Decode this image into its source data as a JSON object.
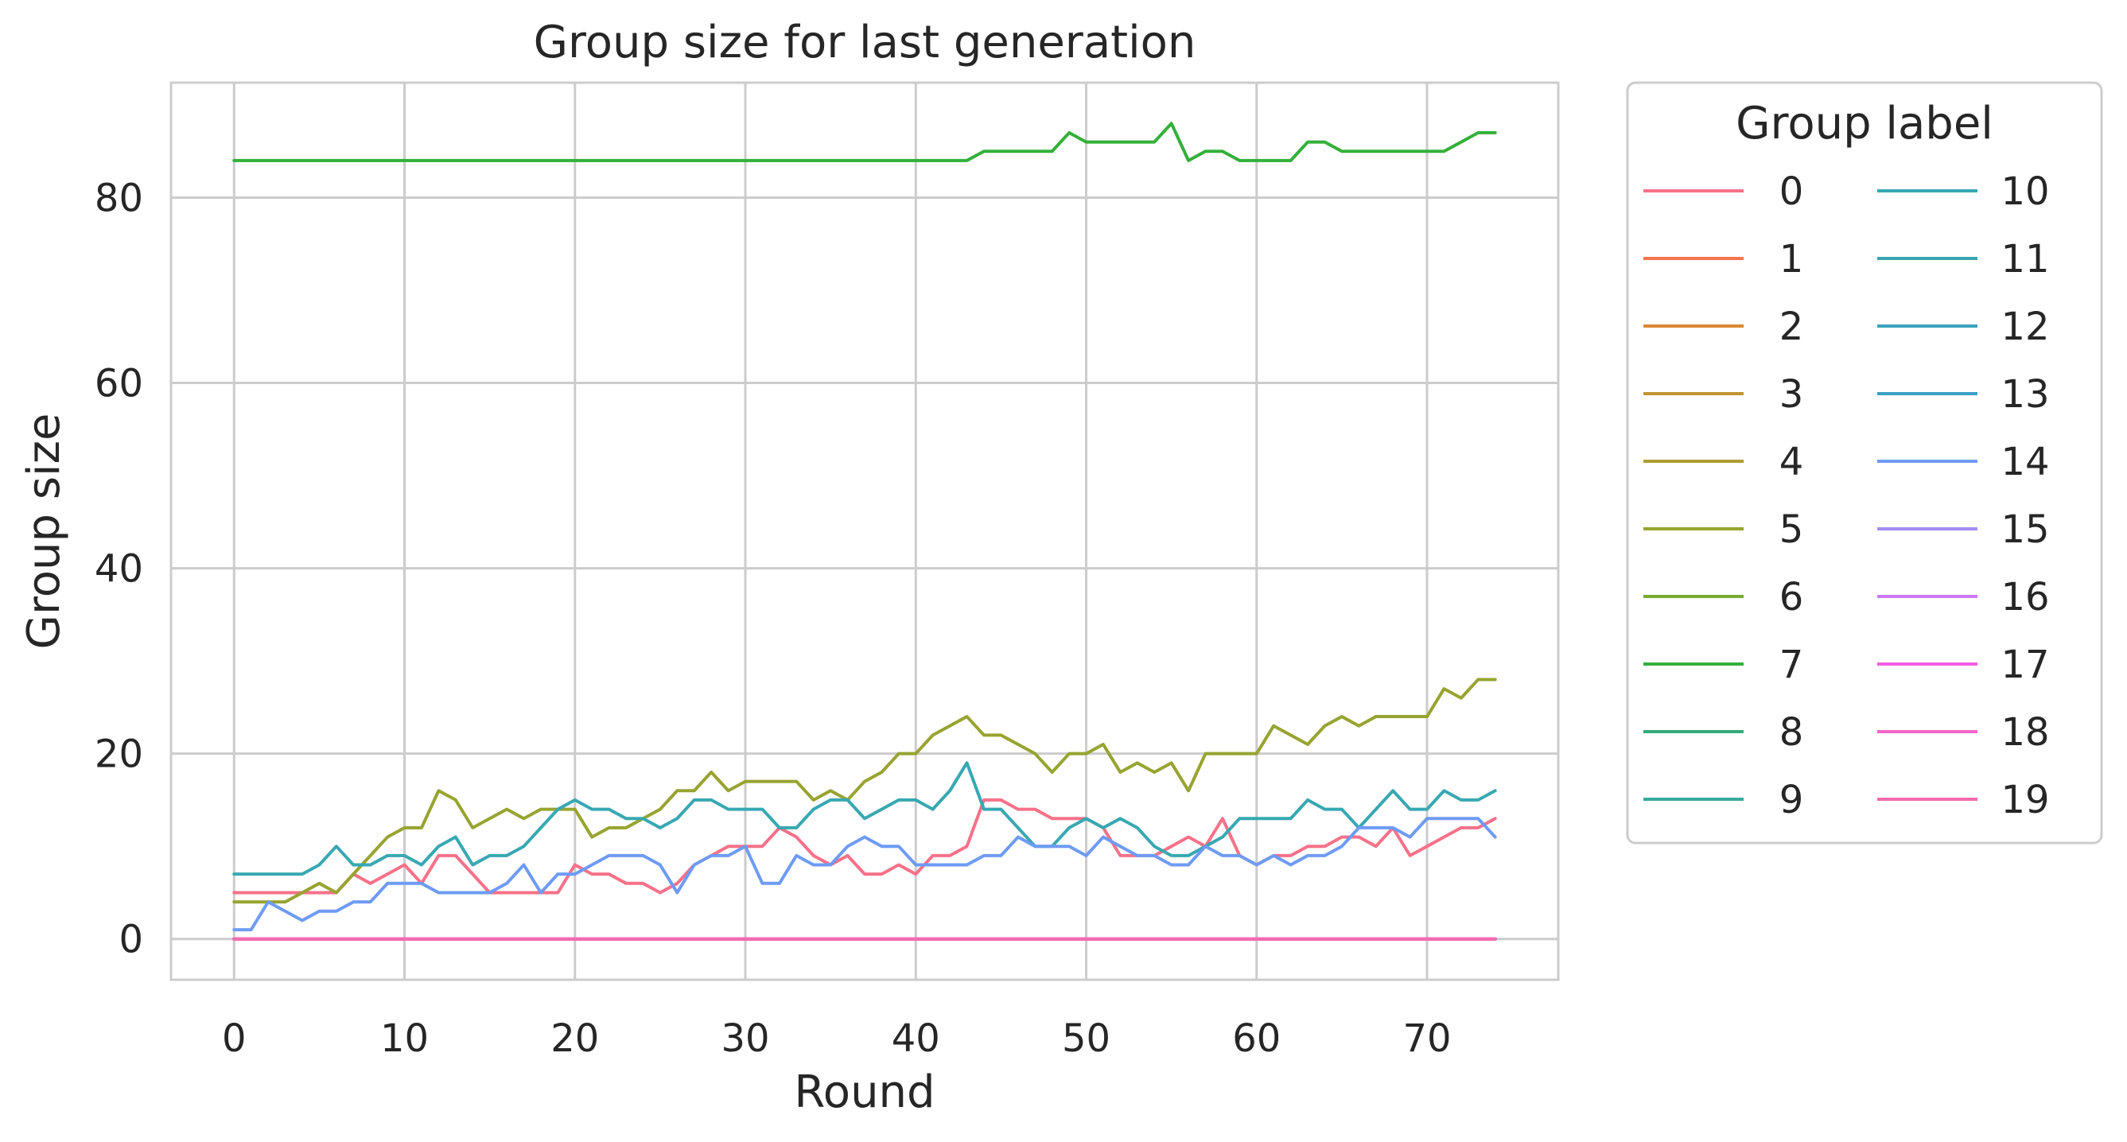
{
  "chart_data": {
    "type": "line",
    "title": "Group size for last generation",
    "xlabel": "Round",
    "ylabel": "Group size",
    "xlim": [
      -3.7,
      77.7
    ],
    "ylim": [
      -4.4,
      92.4
    ],
    "xticks": [
      0,
      10,
      20,
      30,
      40,
      50,
      60,
      70
    ],
    "yticks": [
      0,
      20,
      40,
      60,
      80
    ],
    "grid": true,
    "legend": {
      "title": "Group label",
      "placement": "outside-right",
      "columns": 2
    },
    "zero_series": {
      "names": [
        "1",
        "2",
        "3",
        "4",
        "6",
        "8",
        "9",
        "11",
        "13",
        "15",
        "16",
        "17",
        "18",
        "19"
      ],
      "value": 0,
      "x_range": [
        0,
        74
      ]
    },
    "series": [
      {
        "name": "0",
        "color": "#f77189",
        "values": [
          5,
          5,
          5,
          5,
          5,
          5,
          5,
          7,
          6,
          7,
          8,
          6,
          9,
          9,
          7,
          5,
          5,
          5,
          5,
          5,
          8,
          7,
          7,
          6,
          6,
          5,
          6,
          8,
          9,
          10,
          10,
          10,
          12,
          11,
          9,
          8,
          9,
          7,
          7,
          8,
          7,
          9,
          9,
          10,
          15,
          15,
          14,
          14,
          13,
          13,
          13,
          12,
          9,
          9,
          9,
          10,
          11,
          10,
          13,
          9,
          8,
          9,
          9,
          10,
          10,
          11,
          11,
          10,
          12,
          9,
          10,
          11,
          12,
          12,
          13
        ]
      },
      {
        "name": "1",
        "color": "#f7754f",
        "values": []
      },
      {
        "name": "2",
        "color": "#dc8932",
        "values": []
      },
      {
        "name": "3",
        "color": "#c39532",
        "values": []
      },
      {
        "name": "4",
        "color": "#ae9d31",
        "values": []
      },
      {
        "name": "5",
        "color": "#97a431",
        "values": [
          4,
          4,
          4,
          4,
          5,
          6,
          5,
          7,
          9,
          11,
          12,
          12,
          16,
          15,
          12,
          13,
          14,
          13,
          14,
          14,
          14,
          11,
          12,
          12,
          13,
          14,
          16,
          16,
          18,
          16,
          17,
          17,
          17,
          17,
          15,
          16,
          15,
          17,
          18,
          20,
          20,
          22,
          23,
          24,
          22,
          22,
          21,
          20,
          18,
          20,
          20,
          21,
          18,
          19,
          18,
          19,
          16,
          20,
          20,
          20,
          20,
          23,
          22,
          21,
          23,
          24,
          23,
          24,
          24,
          24,
          24,
          27,
          26,
          28,
          28
        ]
      },
      {
        "name": "6",
        "color": "#77ab31",
        "values": []
      },
      {
        "name": "7",
        "color": "#33b039",
        "values": [
          84,
          84,
          84,
          84,
          84,
          84,
          84,
          84,
          84,
          84,
          84,
          84,
          84,
          84,
          84,
          84,
          84,
          84,
          84,
          84,
          84,
          84,
          84,
          84,
          84,
          84,
          84,
          84,
          84,
          84,
          84,
          84,
          84,
          84,
          84,
          84,
          84,
          84,
          84,
          84,
          84,
          84,
          84,
          84,
          85,
          85,
          85,
          85,
          85,
          87,
          86,
          86,
          86,
          86,
          86,
          88,
          84,
          85,
          85,
          84,
          84,
          84,
          84,
          86,
          86,
          85,
          85,
          85,
          85,
          85,
          85,
          85,
          86,
          87,
          87
        ]
      },
      {
        "name": "8",
        "color": "#35ac7a",
        "values": []
      },
      {
        "name": "9",
        "color": "#37aa9d",
        "values": []
      },
      {
        "name": "10",
        "color": "#38a8b2",
        "values": [
          7,
          7,
          7,
          7,
          7,
          8,
          10,
          8,
          8,
          9,
          9,
          8,
          10,
          11,
          8,
          9,
          9,
          10,
          12,
          14,
          15,
          14,
          14,
          13,
          13,
          12,
          13,
          15,
          15,
          14,
          14,
          14,
          12,
          12,
          14,
          15,
          15,
          13,
          14,
          15,
          15,
          14,
          16,
          19,
          14,
          14,
          12,
          10,
          10,
          12,
          13,
          12,
          13,
          12,
          10,
          9,
          9,
          10,
          11,
          13,
          13,
          13,
          13,
          15,
          14,
          14,
          12,
          14,
          16,
          14,
          14,
          16,
          15,
          15,
          16
        ]
      },
      {
        "name": "11",
        "color": "#3aa5b1",
        "values": []
      },
      {
        "name": "12",
        "color": "#3ba3bc",
        "values": []
      },
      {
        "name": "13",
        "color": "#3ca0c6",
        "values": []
      },
      {
        "name": "14",
        "color": "#6e9bf4",
        "values": [
          1,
          1,
          4,
          3,
          2,
          3,
          3,
          4,
          4,
          6,
          6,
          6,
          5,
          5,
          5,
          5,
          6,
          8,
          5,
          7,
          7,
          8,
          9,
          9,
          9,
          8,
          5,
          8,
          9,
          9,
          10,
          6,
          6,
          9,
          8,
          8,
          10,
          11,
          10,
          10,
          8,
          8,
          8,
          8,
          9,
          9,
          11,
          10,
          10,
          10,
          9,
          11,
          10,
          9,
          9,
          8,
          8,
          10,
          9,
          9,
          8,
          9,
          8,
          9,
          9,
          10,
          12,
          12,
          12,
          11,
          13,
          13,
          13,
          13,
          11
        ]
      },
      {
        "name": "15",
        "color": "#a48cf4",
        "values": []
      },
      {
        "name": "16",
        "color": "#cc79f4",
        "values": []
      },
      {
        "name": "17",
        "color": "#f45ee3",
        "values": []
      },
      {
        "name": "18",
        "color": "#f565cc",
        "values": []
      },
      {
        "name": "19",
        "color": "#f66bad",
        "values": []
      }
    ]
  }
}
